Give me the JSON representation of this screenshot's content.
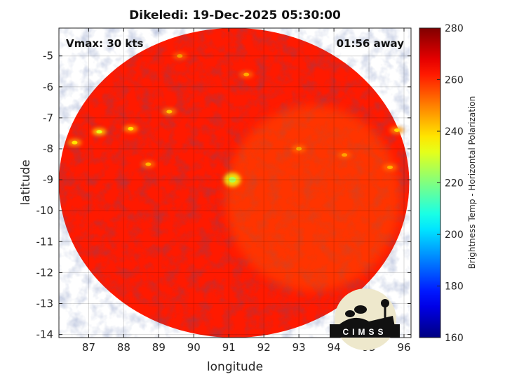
{
  "chart_data": {
    "type": "heatmap",
    "title": "Dikeledi: 19-Dec-2025 05:30:00",
    "xlabel": "longitude",
    "ylabel": "latitude",
    "xlim": [
      86.15,
      96.2
    ],
    "ylim": [
      -14.1,
      -4.1
    ],
    "xticks": [
      87,
      88,
      89,
      90,
      91,
      92,
      93,
      94,
      95,
      96
    ],
    "yticks": [
      -5,
      -6,
      -7,
      -8,
      -9,
      -10,
      -11,
      -12,
      -13,
      -14
    ],
    "grid": true,
    "annotation_left": "Vmax: 30 kts",
    "annotation_right": "01:56 away",
    "swath_center": {
      "lon": 91.15,
      "lat": -9.1
    },
    "swath_radius_deg": 5.0,
    "features": [
      {
        "lon": 91.1,
        "lat": -9.0,
        "value": 225,
        "kind": "center"
      },
      {
        "lon": 87.3,
        "lat": -7.45,
        "value": 232
      },
      {
        "lon": 86.6,
        "lat": -7.8,
        "value": 238
      },
      {
        "lon": 88.2,
        "lat": -7.35,
        "value": 238
      },
      {
        "lon": 89.3,
        "lat": -6.8,
        "value": 242
      },
      {
        "lon": 95.8,
        "lat": -7.4,
        "value": 240
      },
      {
        "lon": 93.0,
        "lat": -8.0,
        "value": 244
      },
      {
        "lon": 94.3,
        "lat": -8.2,
        "value": 246
      },
      {
        "lon": 95.6,
        "lat": -8.6,
        "value": 244
      },
      {
        "lon": 88.7,
        "lat": -8.5,
        "value": 244
      },
      {
        "lon": 91.5,
        "lat": -5.6,
        "value": 245
      },
      {
        "lon": 89.6,
        "lat": -5.0,
        "value": 246
      }
    ],
    "colorbar": {
      "label": "Brightness Temp - Horizontal Polarization",
      "min": 160,
      "max": 280,
      "ticks": [
        280,
        260,
        240,
        220,
        200,
        180,
        160
      ]
    },
    "logo": {
      "text": "CIMSS"
    }
  }
}
